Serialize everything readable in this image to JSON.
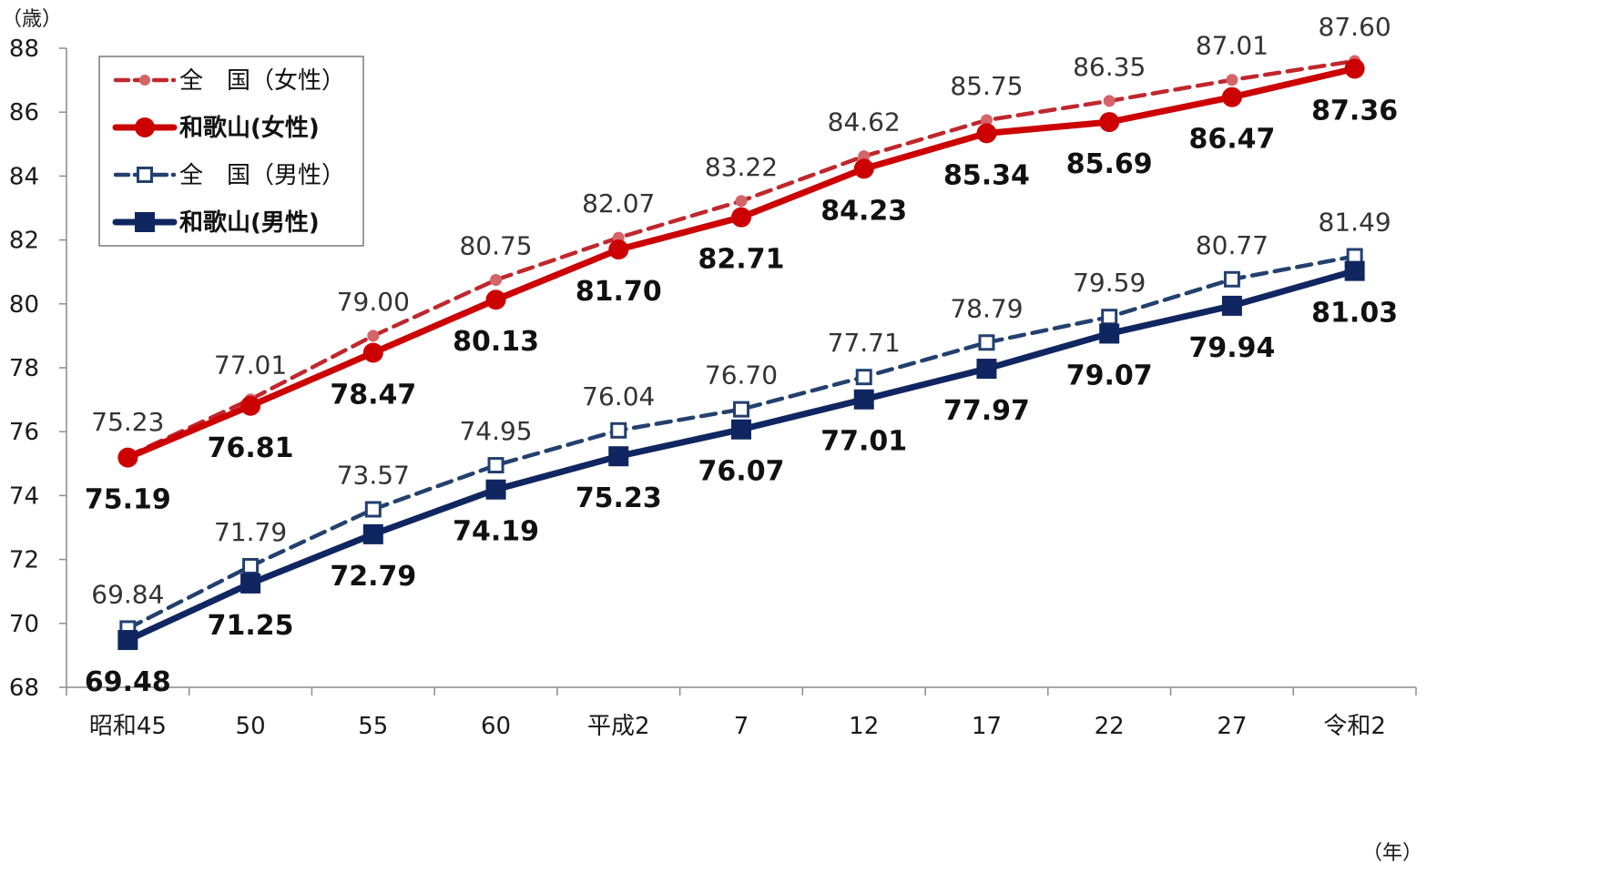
{
  "chart_data": {
    "type": "line",
    "y_unit_label": "（歳）",
    "x_unit_label": "（年）",
    "ylim": [
      68,
      88
    ],
    "y_ticks": [
      68,
      70,
      72,
      74,
      76,
      78,
      80,
      82,
      84,
      86,
      88
    ],
    "y_tick_labels": [
      "68",
      "70",
      "72",
      "74",
      "76",
      "78",
      "80",
      "82",
      "84",
      "86",
      "88"
    ],
    "categories": [
      "昭和45",
      "50",
      "55",
      "60",
      "平成2",
      "7",
      "12",
      "17",
      "22",
      "27",
      "令和2"
    ],
    "grid": false,
    "legend_position": "top-left",
    "series": [
      {
        "name": "全　国（女性）",
        "color": "#c0272d",
        "style": "dashed",
        "marker": "circle-small",
        "values": [
          75.23,
          77.01,
          79.0,
          80.75,
          82.07,
          83.22,
          84.62,
          85.75,
          86.35,
          87.01,
          87.6
        ],
        "labels": [
          "75.23",
          "77.01",
          "79.00",
          "80.75",
          "82.07",
          "83.22",
          "84.62",
          "85.75",
          "86.35",
          "87.01",
          "87.60"
        ]
      },
      {
        "name": "和歌山(女性)",
        "color": "#cc0000",
        "style": "solid",
        "marker": "circle",
        "values": [
          75.19,
          76.81,
          78.47,
          80.13,
          81.7,
          82.71,
          84.23,
          85.34,
          85.69,
          86.47,
          87.36
        ],
        "labels": [
          "75.19",
          "76.81",
          "78.47",
          "80.13",
          "81.70",
          "82.71",
          "84.23",
          "85.34",
          "85.69",
          "86.47",
          "87.36"
        ]
      },
      {
        "name": "全　国（男性）",
        "color": "#23406e",
        "style": "dashed",
        "marker": "square-open",
        "values": [
          69.84,
          71.79,
          73.57,
          74.95,
          76.04,
          76.7,
          77.71,
          78.79,
          79.59,
          80.77,
          81.49
        ],
        "labels": [
          "69.84",
          "71.79",
          "73.57",
          "74.95",
          "76.04",
          "76.70",
          "77.71",
          "78.79",
          "79.59",
          "80.77",
          "81.49"
        ]
      },
      {
        "name": "和歌山(男性)",
        "color": "#0f2660",
        "style": "solid",
        "marker": "square",
        "values": [
          69.48,
          71.25,
          72.79,
          74.19,
          75.23,
          76.07,
          77.01,
          77.97,
          79.07,
          79.94,
          81.03
        ],
        "labels": [
          "69.48",
          "71.25",
          "72.79",
          "74.19",
          "75.23",
          "76.07",
          "77.01",
          "77.97",
          "79.07",
          "79.94",
          "81.03"
        ]
      }
    ]
  }
}
